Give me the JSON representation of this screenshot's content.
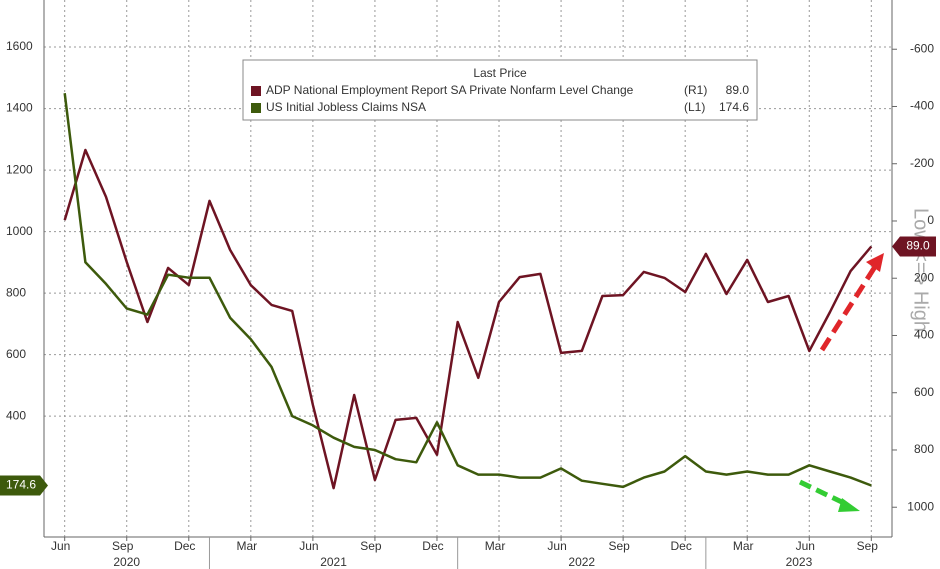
{
  "chart_data": {
    "type": "line",
    "legend_title": "Last Price",
    "y2label": "Low <=> High",
    "x": [
      "2020-06",
      "2020-07",
      "2020-08",
      "2020-09",
      "2020-10",
      "2020-11",
      "2020-12",
      "2021-01",
      "2021-02",
      "2021-03",
      "2021-04",
      "2021-05",
      "2021-06",
      "2021-07",
      "2021-08",
      "2021-09",
      "2021-10",
      "2021-11",
      "2021-12",
      "2022-01",
      "2022-02",
      "2022-03",
      "2022-04",
      "2022-05",
      "2022-06",
      "2022-07",
      "2022-08",
      "2022-09",
      "2022-10",
      "2022-11",
      "2022-12",
      "2023-01",
      "2023-02",
      "2023-03",
      "2023-04",
      "2023-05",
      "2023-06",
      "2023-07",
      "2023-08",
      "2023-09"
    ],
    "xlim": [
      "2020-05",
      "2023-10"
    ],
    "xticks": [
      {
        "value": "2020-06",
        "label": "Jun"
      },
      {
        "value": "2020-09",
        "label": "Sep"
      },
      {
        "value": "2020-12",
        "label": "Dec"
      },
      {
        "value": "2021-03",
        "label": "Mar"
      },
      {
        "value": "2021-06",
        "label": "Jun"
      },
      {
        "value": "2021-09",
        "label": "Sep"
      },
      {
        "value": "2021-12",
        "label": "Dec"
      },
      {
        "value": "2022-03",
        "label": "Mar"
      },
      {
        "value": "2022-06",
        "label": "Jun"
      },
      {
        "value": "2022-09",
        "label": "Sep"
      },
      {
        "value": "2022-12",
        "label": "Dec"
      },
      {
        "value": "2023-03",
        "label": "Mar"
      },
      {
        "value": "2023-06",
        "label": "Jun"
      },
      {
        "value": "2023-09",
        "label": "Sep"
      }
    ],
    "years": [
      "2020",
      "2021",
      "2022",
      "2023"
    ],
    "ylim": [
      7,
      1753
    ],
    "yticks": [
      400,
      600,
      800,
      1000,
      1200,
      1400,
      1600
    ],
    "y2lim": [
      1104,
      -772
    ],
    "y2ticks": [
      -600,
      -400,
      -200,
      0,
      200,
      400,
      600,
      800,
      1000
    ],
    "grid": true,
    "series": [
      {
        "name": "ADP National Employment Report SA Private Nonfarm Level Change",
        "axis_tag": "(R1)",
        "last_label": "89.0",
        "axis": "y2",
        "color": "#6e1423",
        "values": [
          -3,
          -248,
          -84,
          143,
          353,
          164,
          224,
          -70,
          101,
          224,
          293,
          314,
          643,
          933,
          608,
          905,
          695,
          688,
          817,
          353,
          548,
          283,
          196,
          185,
          461,
          454,
          262,
          259,
          178,
          199,
          248,
          115,
          255,
          136,
          283,
          262,
          454,
          318,
          175,
          89
        ]
      },
      {
        "name": "US Initial Jobless Claims NSA",
        "axis_tag": "(L1)",
        "last_label": "174.6",
        "axis": "y",
        "color": "#3d5a0c",
        "values": [
          1450,
          900,
          830,
          750,
          730,
          860,
          850,
          850,
          720,
          650,
          560,
          400,
          370,
          330,
          300,
          290,
          260,
          250,
          380,
          240,
          210,
          210,
          200,
          200,
          230,
          190,
          180,
          170,
          200,
          220,
          270,
          220,
          210,
          220,
          210,
          210,
          240,
          220,
          200,
          174.6
        ]
      }
    ]
  }
}
